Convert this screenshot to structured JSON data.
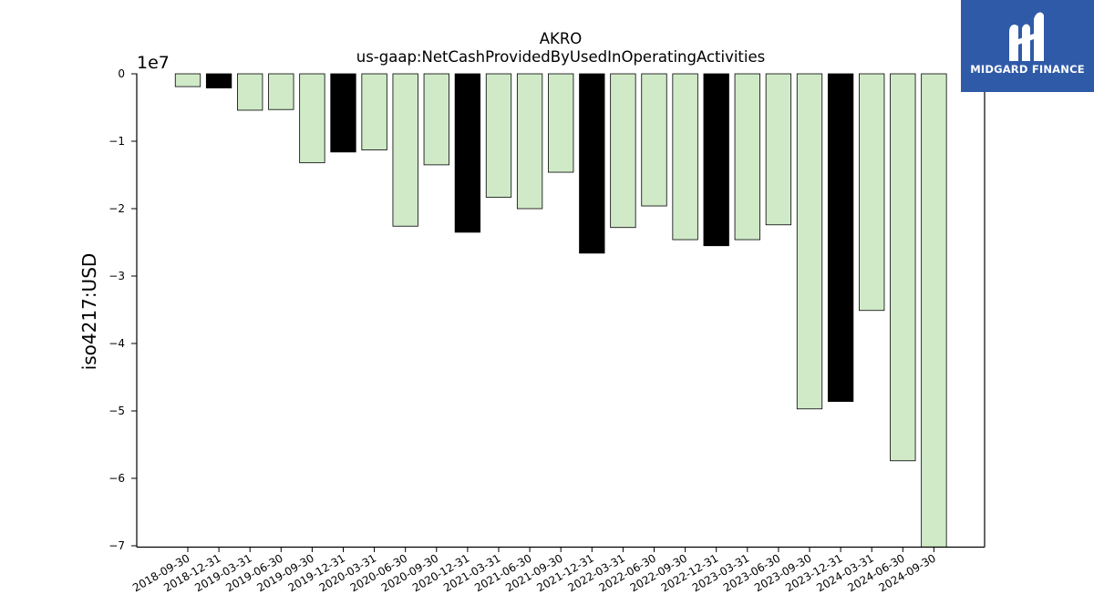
{
  "chart_data": {
    "type": "bar",
    "title": "AKRO",
    "subtitle": "us-gaap:NetCashProvidedByUsedInOperatingActivities",
    "ylabel": "iso4217:USD",
    "xlabel": "",
    "offset_label": "1e7",
    "ylim": [
      -70000000,
      0
    ],
    "yticks": [
      0,
      -10000000,
      -20000000,
      -30000000,
      -40000000,
      -50000000,
      -60000000,
      -70000000
    ],
    "ytick_labels": [
      "0",
      "−1",
      "−2",
      "−3",
      "−4",
      "−5",
      "−6",
      "−7"
    ],
    "categories": [
      "2018-09-30",
      "2018-12-31",
      "2019-03-31",
      "2019-06-30",
      "2019-09-30",
      "2019-12-31",
      "2020-03-31",
      "2020-06-30",
      "2020-09-30",
      "2020-12-31",
      "2021-03-31",
      "2021-06-30",
      "2021-09-30",
      "2021-12-31",
      "2022-03-31",
      "2022-06-30",
      "2022-09-30",
      "2022-12-31",
      "2023-03-31",
      "2023-06-30",
      "2023-09-30",
      "2023-12-31",
      "2024-03-31",
      "2024-06-30",
      "2024-09-30"
    ],
    "values": [
      -1900000,
      -2100000,
      -5400000,
      -5300000,
      -13200000,
      -11600000,
      -11300000,
      -22600000,
      -13500000,
      -23500000,
      -18300000,
      -20000000,
      -14600000,
      -26600000,
      -22800000,
      -19600000,
      -24600000,
      -25500000,
      -24600000,
      -22400000,
      -49700000,
      -48600000,
      -35100000,
      -57400000,
      -70200000
    ],
    "bar_colors": [
      "#d0eac8",
      "#000000",
      "#d0eac8",
      "#d0eac8",
      "#d0eac8",
      "#000000",
      "#d0eac8",
      "#d0eac8",
      "#d0eac8",
      "#000000",
      "#d0eac8",
      "#d0eac8",
      "#d0eac8",
      "#000000",
      "#d0eac8",
      "#d0eac8",
      "#d0eac8",
      "#000000",
      "#d0eac8",
      "#d0eac8",
      "#d0eac8",
      "#000000",
      "#d0eac8",
      "#d0eac8",
      "#d0eac8"
    ],
    "grid": false,
    "legend": "none"
  },
  "logo": {
    "text": "MIDGARD FINANCE",
    "color": "#2f5aa8"
  }
}
